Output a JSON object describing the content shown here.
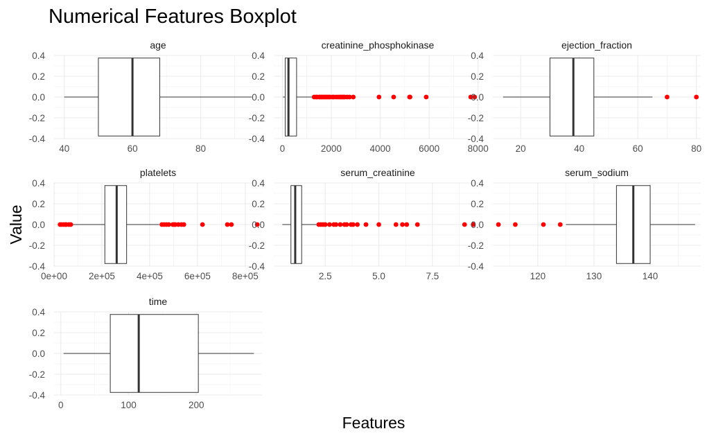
{
  "chart_data": {
    "type": "boxplot",
    "title": "Numerical Features Boxplot",
    "xlabel": "Features",
    "ylabel": "Value",
    "colors": {
      "outlier": "#ff0000",
      "box": "#333333",
      "grid": "#ebebeb"
    },
    "y_axis": {
      "range": [
        -0.4,
        0.4
      ],
      "ticks": [
        0.4,
        0.2,
        0.0,
        -0.2,
        -0.4
      ],
      "tick_labels": [
        "0.4",
        "0.2",
        "0.0",
        "-0.2",
        "-0.4"
      ],
      "box_half_height": 0.375
    },
    "facets": [
      {
        "name": "age",
        "xlim": [
          37,
          98
        ],
        "x_ticks": [
          40,
          60,
          80
        ],
        "x_tick_labels": [
          "40",
          "60",
          "80"
        ],
        "whisker_low": 40,
        "q1": 50,
        "median": 60,
        "q3": 68,
        "whisker_high": 95,
        "outliers": []
      },
      {
        "name": "creatinine_phosphokinase",
        "xlim": [
          -350,
          8150
        ],
        "x_ticks": [
          0,
          2000,
          4000,
          6000,
          8000
        ],
        "x_tick_labels": [
          "0",
          "2000",
          "4000",
          "6000",
          "8000"
        ],
        "whisker_low": 23,
        "q1": 116,
        "median": 250,
        "q3": 582,
        "whisker_high": 1280,
        "outliers": [
          1300,
          1380,
          1420,
          1500,
          1550,
          1600,
          1650,
          1700,
          1750,
          1800,
          1850,
          1900,
          1950,
          2050,
          2100,
          2200,
          2280,
          2350,
          2400,
          2450,
          2500,
          2550,
          2650,
          2750,
          2900,
          3950,
          4550,
          5200,
          5220,
          5880,
          7700,
          7860
        ]
      },
      {
        "name": "ejection_fraction",
        "xlim": [
          10.5,
          81.5
        ],
        "x_ticks": [
          20,
          40,
          60,
          80
        ],
        "x_tick_labels": [
          "20",
          "40",
          "60",
          "80"
        ],
        "whisker_low": 14,
        "q1": 30,
        "median": 38,
        "q3": 45,
        "whisker_high": 65,
        "outliers": [
          70,
          80
        ]
      },
      {
        "name": "platelets",
        "xlim": [
          0,
          870000
        ],
        "x_ticks": [
          0,
          200000,
          400000,
          600000,
          800000
        ],
        "x_tick_labels": [
          "0e+00",
          "2e+05",
          "4e+05",
          "6e+05",
          "8e+05"
        ],
        "whisker_low": 76000,
        "q1": 212500,
        "median": 262000,
        "q3": 303500,
        "whisker_high": 440000,
        "outliers": [
          25100,
          32000,
          40000,
          47000,
          51000,
          62000,
          70000,
          451000,
          460000,
          470000,
          480000,
          497000,
          504000,
          507000,
          520000,
          533000,
          543000,
          621000,
          725000,
          742000,
          850000
        ]
      },
      {
        "name": "serum_creatinine",
        "xlim": [
          0.1,
          9.8
        ],
        "x_ticks": [
          2.5,
          5.0,
          7.5
        ],
        "x_tick_labels": [
          "2.5",
          "5.0",
          "7.5"
        ],
        "whisker_low": 0.5,
        "q1": 0.9,
        "median": 1.1,
        "q3": 1.4,
        "whisker_high": 2.1,
        "outliers": [
          2.2,
          2.3,
          2.4,
          2.5,
          2.7,
          2.9,
          3.0,
          3.2,
          3.4,
          3.5,
          3.7,
          3.8,
          4.0,
          4.4,
          5.0,
          5.8,
          6.1,
          6.3,
          6.8,
          9.0,
          9.4
        ]
      },
      {
        "name": "serum_sodium",
        "xlim": [
          112,
          149
        ],
        "x_ticks": [
          120,
          130,
          140
        ],
        "x_tick_labels": [
          "120",
          "130",
          "140"
        ],
        "whisker_low": 125,
        "q1": 134,
        "median": 137,
        "q3": 140,
        "whisker_high": 148,
        "outliers": [
          113,
          116,
          121,
          124
        ]
      },
      {
        "name": "time",
        "xlim": [
          -10,
          297
        ],
        "x_ticks": [
          0,
          100,
          200
        ],
        "x_tick_labels": [
          "0",
          "100",
          "200"
        ],
        "whisker_low": 4,
        "q1": 73,
        "median": 115,
        "q3": 203,
        "whisker_high": 285,
        "outliers": []
      }
    ]
  }
}
